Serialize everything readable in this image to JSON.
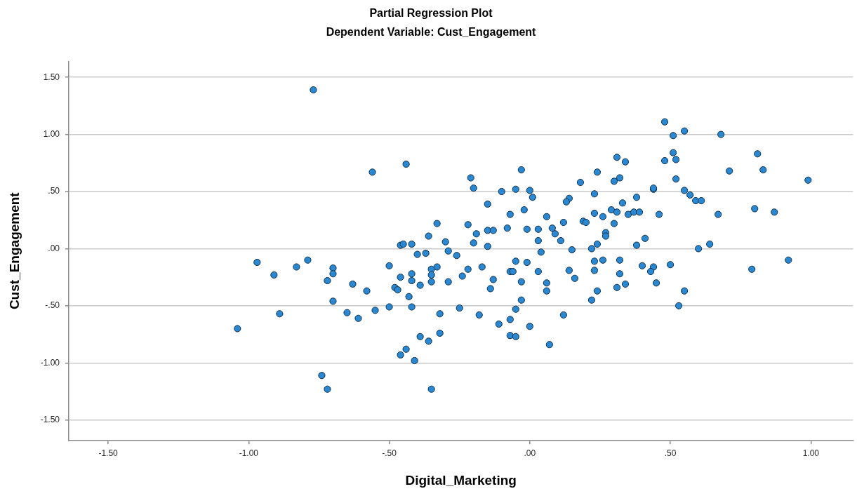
{
  "chart_data": {
    "type": "scatter",
    "title": "Partial Regression Plot",
    "subtitle": "Dependent Variable: Cust_Engagement",
    "xlabel": "Digital_Marketing",
    "ylabel": "Cust_Engagement",
    "x": [
      -0.77,
      -0.56,
      -0.44,
      0.31,
      0.34,
      -0.03,
      0.24,
      -0.21,
      0.32,
      0.18,
      0.3,
      -0.2,
      -0.1,
      -0.05,
      0.0,
      0.01,
      0.23,
      0.38,
      0.14,
      0.13,
      -0.15,
      0.33,
      -0.02,
      -0.07,
      0.29,
      0.31,
      0.23,
      0.26,
      0.06,
      0.35,
      0.37,
      -0.33,
      -0.22,
      0.12,
      0.19,
      0.2,
      0.3,
      -0.15,
      -0.13,
      -0.08,
      -0.01,
      0.03,
      0.08,
      -0.19,
      0.09,
      0.27,
      0.27,
      -0.36,
      0.11,
      -0.3,
      -0.2,
      -0.15,
      0.03,
      -0.37,
      -0.29,
      -0.26,
      0.04,
      0.15,
      0.22,
      0.24,
      0.38,
      -0.05,
      -0.01,
      0.23,
      0.26,
      0.32,
      -0.35,
      -0.33,
      -0.35,
      -0.35,
      -0.22,
      -0.24,
      -0.29,
      -0.17,
      -0.13,
      -0.14,
      -0.07,
      -0.06,
      -0.03,
      0.03,
      0.06,
      0.06,
      0.14,
      0.16,
      0.23,
      0.32,
      0.24,
      0.22,
      0.31,
      0.34,
      -0.03,
      -0.25,
      -0.32,
      -0.18,
      -0.05,
      0.12,
      -0.11,
      -0.07,
      0.0,
      -0.07,
      -0.05,
      -0.32,
      -0.36,
      0.07,
      -0.35,
      -0.46,
      -0.45,
      -0.42,
      -0.4,
      -0.97,
      -0.79,
      -0.83,
      -0.91,
      -0.7,
      -0.7,
      -0.72,
      -0.63,
      -0.58,
      -0.5,
      -0.46,
      -0.42,
      -0.42,
      -0.48,
      -0.47,
      -0.39,
      -0.43,
      -0.7,
      -0.89,
      -0.65,
      -0.61,
      -0.55,
      -0.5,
      -0.42,
      -1.04,
      -0.39,
      -0.44,
      -0.46,
      -0.41,
      -0.74,
      -0.72,
      0.48,
      0.55,
      0.51,
      0.68,
      0.51,
      0.52,
      0.48,
      0.81,
      0.83,
      0.71,
      0.52,
      0.99,
      0.44,
      0.44,
      0.55,
      0.57,
      0.59,
      0.61,
      0.39,
      0.46,
      0.67,
      0.8,
      0.87,
      0.41,
      0.6,
      0.64,
      0.4,
      0.44,
      0.43,
      0.5,
      0.45,
      0.55,
      0.53,
      0.79,
      0.92
    ],
    "values": [
      1.39,
      0.67,
      0.74,
      0.8,
      0.76,
      0.69,
      0.67,
      0.62,
      0.62,
      0.58,
      0.59,
      0.53,
      0.5,
      0.52,
      0.51,
      0.45,
      0.48,
      0.45,
      0.44,
      0.41,
      0.39,
      0.4,
      0.34,
      0.3,
      0.34,
      0.32,
      0.31,
      0.28,
      0.28,
      0.3,
      0.32,
      0.22,
      0.21,
      0.23,
      0.24,
      0.23,
      0.22,
      0.16,
      0.16,
      0.18,
      0.17,
      0.17,
      0.18,
      0.13,
      0.13,
      0.14,
      0.11,
      0.11,
      0.07,
      0.06,
      0.05,
      0.02,
      0.07,
      -0.04,
      -0.02,
      -0.06,
      -0.03,
      -0.01,
      0.0,
      0.04,
      0.03,
      -0.11,
      -0.12,
      -0.11,
      -0.1,
      -0.1,
      -0.18,
      -0.16,
      -0.23,
      -0.29,
      -0.18,
      -0.24,
      -0.29,
      -0.16,
      -0.27,
      -0.35,
      -0.2,
      -0.2,
      -0.29,
      -0.2,
      -0.3,
      -0.37,
      -0.19,
      -0.26,
      -0.19,
      -0.22,
      -0.37,
      -0.45,
      -0.34,
      -0.31,
      -0.45,
      -0.52,
      -0.57,
      -0.58,
      -0.53,
      -0.58,
      -0.66,
      -0.62,
      -0.68,
      -0.76,
      -0.77,
      -0.74,
      -0.81,
      -0.84,
      -1.23,
      0.03,
      0.04,
      0.04,
      -0.05,
      -0.12,
      -0.1,
      -0.16,
      -0.23,
      -0.17,
      -0.22,
      -0.28,
      -0.31,
      -0.37,
      -0.15,
      -0.25,
      -0.22,
      -0.28,
      -0.34,
      -0.36,
      -0.32,
      -0.42,
      -0.46,
      -0.57,
      -0.56,
      -0.61,
      -0.54,
      -0.51,
      -0.51,
      -0.7,
      -0.77,
      -0.88,
      -0.93,
      -0.98,
      -1.11,
      -1.23,
      1.11,
      1.03,
      0.99,
      1.0,
      0.84,
      0.78,
      0.77,
      0.83,
      0.69,
      0.68,
      0.61,
      0.6,
      0.52,
      0.53,
      0.51,
      0.47,
      0.42,
      0.42,
      0.32,
      0.3,
      0.3,
      0.35,
      0.32,
      0.09,
      0.0,
      0.04,
      -0.15,
      -0.16,
      -0.2,
      -0.14,
      -0.3,
      -0.37,
      -0.5,
      -0.18,
      -0.1
    ],
    "color": "#2a88d2",
    "marker": "circle",
    "xlim": [
      -1.64,
      1.15
    ],
    "ylim": [
      -1.68,
      1.64
    ],
    "xticks": [
      {
        "value": -1.5,
        "label": "-1.50"
      },
      {
        "value": -1,
        "label": "-1.00"
      },
      {
        "value": -0.5,
        "label": "-.50"
      },
      {
        "value": 0,
        "label": ".00"
      },
      {
        "value": 0.5,
        "label": ".50"
      },
      {
        "value": 1,
        "label": "1.00"
      }
    ],
    "yticks": [
      {
        "value": -1.5,
        "label": "-1.50"
      },
      {
        "value": -1,
        "label": "-1.00"
      },
      {
        "value": -0.5,
        "label": "-.50"
      },
      {
        "value": 0,
        "label": ".00"
      },
      {
        "value": 0.5,
        "label": ".50"
      },
      {
        "value": 1,
        "label": "1.00"
      },
      {
        "value": 1.5,
        "label": "1.50"
      }
    ],
    "grid": "y"
  }
}
